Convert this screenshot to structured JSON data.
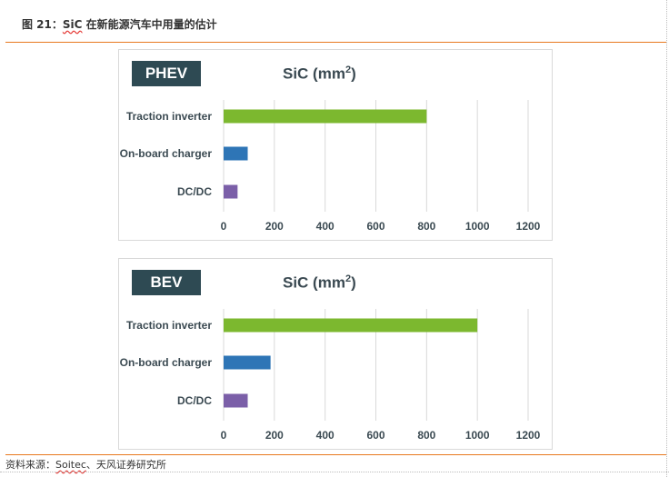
{
  "figure": {
    "label": "图 21：",
    "title_sic": "SiC",
    "title_rest": " 在新能源汽车中用量的估计"
  },
  "source": {
    "prefix": "资料来源：",
    "org": "Soitec",
    "suffix": "、天风证券研究所"
  },
  "colors": {
    "accent_rule": "#e8791f",
    "badge_bg": "#2e4a53",
    "traction": "#7cb82f",
    "charger": "#2e75b6",
    "dcdc": "#7b5fa8",
    "gridline": "#d9d9d9"
  },
  "chart_data": [
    {
      "type": "bar",
      "orientation": "horizontal",
      "badge": "PHEV",
      "title": "SiC (mm",
      "title_sup": "2",
      "title_end": ")",
      "categories": [
        "Traction inverter",
        "On-board charger",
        "DC/DC"
      ],
      "values": [
        800,
        95,
        55
      ],
      "xlim": [
        0,
        1200
      ],
      "xticks": [
        "0",
        "200",
        "400",
        "600",
        "800",
        "1000",
        "1200"
      ],
      "grid": "vertical",
      "legend": "none"
    },
    {
      "type": "bar",
      "orientation": "horizontal",
      "badge": "BEV",
      "title": "SiC (mm",
      "title_sup": "2",
      "title_end": ")",
      "categories": [
        "Traction inverter",
        "On-board charger",
        "DC/DC"
      ],
      "values": [
        1000,
        185,
        95
      ],
      "xlim": [
        0,
        1200
      ],
      "xticks": [
        "0",
        "200",
        "400",
        "600",
        "800",
        "1000",
        "1200"
      ],
      "grid": "vertical",
      "legend": "none"
    }
  ]
}
